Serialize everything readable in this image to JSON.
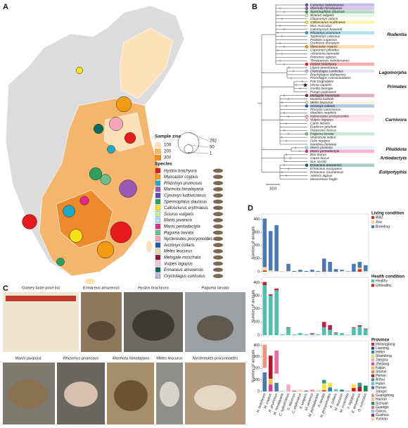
{
  "panel_labels": [
    "A",
    "B",
    "C",
    "D"
  ],
  "map": {
    "size_title": "Sample zise",
    "color_levels": [
      100,
      200,
      300
    ],
    "color_level_colors": [
      "#fbe0b8",
      "#f4b56c",
      "#ec8a2c"
    ],
    "size_levels": [
      292,
      50,
      1
    ],
    "species_title": "Species",
    "species": [
      {
        "name": "Hystrix brachyura",
        "color": "#e41a1c"
      },
      {
        "name": "Myocastor coypus",
        "color": "#f39c12"
      },
      {
        "name": "Rhizomys pruinosus",
        "color": "#1fa9c9"
      },
      {
        "name": "Marmota himalayana",
        "color": "#9b59b6"
      },
      {
        "name": "Cynomys ludovicianus",
        "color": "#5b4db7"
      },
      {
        "name": "Spermophilus dauricus",
        "color": "#2ca25f"
      },
      {
        "name": "Callosciurus erythraeus",
        "color": "#f7e11b"
      },
      {
        "name": "Sciurus vulgaris",
        "color": "#c7e9b4"
      },
      {
        "name": "Manis javanica",
        "color": "#aee0f0"
      },
      {
        "name": "Manis pentadactyla",
        "color": "#e7298a"
      },
      {
        "name": "Paguma larvata",
        "color": "#6bbf8e"
      },
      {
        "name": "Nyctereutes procyonoides",
        "color": "#f4a6b8"
      },
      {
        "name": "Arctonyx collaris",
        "color": "#1f5fa8"
      },
      {
        "name": "Meles leucurus",
        "color": "#e8d9a8"
      },
      {
        "name": "Melogale moschata",
        "color": "#8b1a3a"
      },
      {
        "name": "Vulpes lagopus",
        "color": "#f6c9d9"
      },
      {
        "name": "Erinaceus amurensis",
        "color": "#0d6b5f"
      },
      {
        "name": "Oryctolagus cuniculus",
        "color": "#b9b4de"
      }
    ],
    "sites": [
      {
        "sample_size": 30,
        "color": "#f7e11b"
      },
      {
        "sample_size": 120,
        "color": "#f4a6b8"
      },
      {
        "sample_size": 60,
        "color": "#0d6b5f"
      },
      {
        "sample_size": 150,
        "color": "#f39c12"
      },
      {
        "sample_size": 80,
        "color": "#e41a1c"
      },
      {
        "sample_size": 40,
        "color": "#1fa9c9"
      },
      {
        "sample_size": 200,
        "color": "#9b59b6"
      },
      {
        "sample_size": 100,
        "color": "#2ca25f"
      },
      {
        "sample_size": 50,
        "color": "#e7298a"
      },
      {
        "sample_size": 90,
        "color": "#1fa9c9"
      },
      {
        "sample_size": 110,
        "color": "#f7e11b"
      },
      {
        "sample_size": 292,
        "color": "#e41a1c"
      },
      {
        "sample_size": 180,
        "color": "#f39c12"
      },
      {
        "sample_size": 140,
        "color": "#e41a1c"
      },
      {
        "sample_size": 40,
        "color": "#2ca25f"
      },
      {
        "sample_size": 70,
        "color": "#6bbf8e"
      }
    ]
  },
  "tree": {
    "tips": [
      "Cynomys ludovicianus",
      "Marmota himalayana",
      "Spermophilus dauricus",
      "Sciurus vulgaris",
      "Glaucomys volans",
      "Callosciurus erythraeus",
      "Mus musculus",
      "Calomyscus baiwardi",
      "Rhizomys pruinosus",
      "Typhlomys cinereus",
      "Pedetes capensis",
      "Erethizon dorsatum",
      "Myocastor coypus",
      "Capromys pilorides",
      "Abrocoma bennettii",
      "Petromus typicus",
      "Thryonomys swinderianus",
      "Hystrix brachyura",
      "Lepus americanus",
      "Oryctolagus cuniculus",
      "Brachylagus idahoensis",
      "Pronolagus crassicaudatus",
      "Pan troglodytes",
      "Homo sapiens",
      "Gorilla beringei",
      "Pongo pygmaeus",
      "Melogale moschata",
      "Mustela kathiah",
      "Meles leucurus",
      "Arctonyx collaris",
      "Procyon cancrivorus",
      "Mephitis mephitis",
      "Nyctereutes procyonoides",
      "Vulpes lagopus",
      "Canis latrans",
      "Eupleres goudotii",
      "Herpestes fuscus",
      "Paguma larvata",
      "Viverricula indica",
      "Felis nigripes",
      "Nandinia binotata",
      "Manis javanica",
      "Manis pentadactyla",
      "Bos taurus",
      "Capra hircus",
      "Sus scrofa",
      "Erinaceus amurensis",
      "Erinaceus europaeus",
      "Erinaceus roumanicus",
      "Atelerix algirus",
      "Mesechinus hughi"
    ],
    "orders": [
      "Rodentia",
      "Lagomorpha",
      "Primates",
      "Carnivora",
      "Pholidota",
      "Artiodactyla",
      "Eulipotyphla"
    ],
    "scale_label": "10.0"
  },
  "photos": {
    "titles": [
      "Gamey taste price list",
      "Erinaceus amurensis",
      "Hystrix brachyura",
      "Paguma larvata",
      "Manis javanica",
      "Rhizomys pruinosus",
      "Marmota himalayana",
      "Meles leucurus",
      "Nyctereutes procyonoides"
    ]
  },
  "chart_data": [
    {
      "type": "bar",
      "stacked": true,
      "y_label": "Number of animals",
      "legend_title": "Living condition",
      "ylim": [
        0,
        440
      ],
      "yticks": [
        0,
        100,
        200,
        300,
        400
      ],
      "series": [
        {
          "name": "Wild",
          "color": "#d7301f",
          "values": [
            10,
            0,
            0,
            0,
            0,
            0,
            0,
            0,
            0,
            0,
            5,
            0,
            0,
            0,
            0,
            0,
            20,
            0
          ]
        },
        {
          "name": "Zoo",
          "color": "#f1d7a2",
          "values": [
            25,
            10,
            5,
            5,
            5,
            0,
            0,
            0,
            0,
            0,
            0,
            0,
            0,
            5,
            0,
            0,
            10,
            5
          ]
        },
        {
          "name": "Breeding",
          "color": "#4a7ab5",
          "values": [
            370,
            300,
            350,
            0,
            55,
            5,
            15,
            5,
            15,
            5,
            95,
            75,
            20,
            10,
            3,
            60,
            45,
            45
          ]
        }
      ]
    },
    {
      "type": "bar",
      "stacked": true,
      "y_label": "Number of animals",
      "legend_title": "Health condition",
      "ylim": [
        0,
        440
      ],
      "yticks": [
        0,
        100,
        200,
        300,
        400
      ],
      "series": [
        {
          "name": "Healthy",
          "color": "#4fbfae",
          "values": [
            380,
            300,
            340,
            5,
            55,
            5,
            15,
            5,
            10,
            5,
            60,
            40,
            15,
            15,
            3,
            55,
            65,
            45
          ]
        },
        {
          "name": "Unhealthy",
          "color": "#c51b3a",
          "values": [
            25,
            10,
            15,
            0,
            5,
            0,
            0,
            0,
            5,
            0,
            40,
            35,
            5,
            0,
            0,
            5,
            10,
            5
          ]
        }
      ]
    },
    {
      "type": "bar",
      "stacked": true,
      "y_label": "Number of animals",
      "legend_title": "Province",
      "ylim": [
        0,
        440
      ],
      "yticks": [
        0,
        100,
        200,
        300,
        400
      ],
      "categories": [
        "H. brachyura",
        "M. coypus",
        "R. pruinosus",
        "M. himalayana",
        "C. ludovicianus",
        "S. dauricus",
        "C. erythraeus",
        "S. vulgaris",
        "M. javanica",
        "M. pentadactyla",
        "P. larvata",
        "N. procyonoides",
        "A. collaris",
        "M. leucurus",
        "M. moschata",
        "V. lagopus",
        "E. amurensis",
        "O. cuniculus"
      ],
      "series": [
        {
          "name": "Heilongjiang",
          "color": "#e31a1c",
          "values": [
            0,
            0,
            0,
            0,
            0,
            5,
            0,
            0,
            0,
            0,
            10,
            0,
            0,
            0,
            0,
            30,
            0,
            0
          ]
        },
        {
          "name": "Liaoning",
          "color": "#1f3f8f",
          "values": [
            0,
            0,
            0,
            0,
            0,
            0,
            0,
            5,
            0,
            0,
            0,
            0,
            0,
            0,
            0,
            0,
            0,
            0
          ]
        },
        {
          "name": "Hebei",
          "color": "#2c7fb8",
          "values": [
            15,
            0,
            0,
            0,
            0,
            0,
            0,
            0,
            0,
            0,
            0,
            35,
            0,
            0,
            0,
            0,
            0,
            0
          ]
        },
        {
          "name": "Shandong",
          "color": "#fee13b",
          "values": [
            0,
            0,
            0,
            0,
            0,
            0,
            0,
            0,
            0,
            0,
            60,
            40,
            0,
            0,
            0,
            30,
            0,
            0
          ]
        },
        {
          "name": "Jiangsu",
          "color": "#f7a8c9",
          "values": [
            0,
            0,
            0,
            0,
            60,
            0,
            0,
            0,
            0,
            0,
            0,
            0,
            0,
            0,
            0,
            0,
            0,
            0
          ]
        },
        {
          "name": "Zhejiang",
          "color": "#d63fa0",
          "values": [
            0,
            60,
            0,
            0,
            0,
            0,
            0,
            0,
            0,
            0,
            0,
            0,
            0,
            0,
            0,
            0,
            0,
            0
          ]
        },
        {
          "name": "Fujian",
          "color": "#f6c04a",
          "values": [
            0,
            50,
            0,
            0,
            0,
            0,
            0,
            0,
            0,
            0,
            0,
            0,
            0,
            0,
            0,
            0,
            0,
            0
          ]
        },
        {
          "name": "Shanxi",
          "color": "#f08a3c",
          "values": [
            0,
            0,
            0,
            0,
            0,
            0,
            0,
            0,
            0,
            0,
            0,
            0,
            0,
            0,
            0,
            0,
            0,
            0
          ]
        },
        {
          "name": "Henan",
          "color": "#b2182b",
          "values": [
            0,
            200,
            0,
            0,
            0,
            0,
            0,
            0,
            0,
            0,
            0,
            0,
            0,
            0,
            0,
            0,
            40,
            0
          ]
        },
        {
          "name": "Anhui",
          "color": "#2a9d8f",
          "values": [
            0,
            0,
            0,
            0,
            0,
            0,
            0,
            0,
            0,
            0,
            30,
            0,
            0,
            0,
            0,
            0,
            35,
            0
          ]
        },
        {
          "name": "Hubei",
          "color": "#6fc3e0",
          "values": [
            0,
            0,
            0,
            0,
            0,
            0,
            0,
            0,
            0,
            0,
            0,
            0,
            20,
            0,
            0,
            0,
            0,
            0
          ]
        },
        {
          "name": "Hunan",
          "color": "#4a78b5",
          "values": [
            150,
            0,
            75,
            0,
            0,
            0,
            0,
            0,
            0,
            0,
            0,
            0,
            0,
            0,
            0,
            0,
            0,
            0
          ]
        },
        {
          "name": "Jiangxi",
          "color": "#ffffff",
          "values": [
            40,
            0,
            80,
            0,
            0,
            0,
            0,
            0,
            0,
            0,
            0,
            0,
            0,
            0,
            0,
            0,
            0,
            0
          ]
        },
        {
          "name": "Guangdong",
          "color": "#f2917e",
          "values": [
            200,
            0,
            0,
            0,
            0,
            0,
            0,
            0,
            15,
            5,
            0,
            0,
            0,
            0,
            0,
            0,
            0,
            0
          ]
        },
        {
          "name": "Hainan",
          "color": "#f5c7a8",
          "values": [
            0,
            0,
            0,
            0,
            0,
            0,
            0,
            0,
            0,
            0,
            0,
            0,
            0,
            0,
            0,
            0,
            0,
            0
          ]
        },
        {
          "name": "Sichuan",
          "color": "#1b8a5a",
          "values": [
            0,
            0,
            0,
            0,
            0,
            0,
            0,
            0,
            0,
            0,
            0,
            0,
            0,
            15,
            0,
            0,
            0,
            50
          ]
        },
        {
          "name": "Guangxi",
          "color": "#e86aa0",
          "values": [
            0,
            0,
            200,
            0,
            0,
            0,
            0,
            0,
            0,
            0,
            0,
            0,
            0,
            0,
            0,
            0,
            0,
            0
          ]
        },
        {
          "name": "Gansu",
          "color": "#8fd0c0",
          "values": [
            0,
            0,
            0,
            5,
            0,
            0,
            0,
            0,
            0,
            0,
            0,
            0,
            0,
            0,
            0,
            0,
            0,
            0
          ]
        },
        {
          "name": "Guizhou",
          "color": "#7b3294",
          "values": [
            0,
            0,
            0,
            0,
            0,
            0,
            0,
            0,
            0,
            0,
            0,
            0,
            0,
            0,
            3,
            0,
            0,
            0
          ]
        },
        {
          "name": "Yunnan",
          "color": "#fdd49e",
          "values": [
            0,
            0,
            0,
            0,
            0,
            0,
            15,
            0,
            0,
            0,
            0,
            0,
            0,
            0,
            0,
            0,
            0,
            0
          ]
        }
      ]
    }
  ]
}
